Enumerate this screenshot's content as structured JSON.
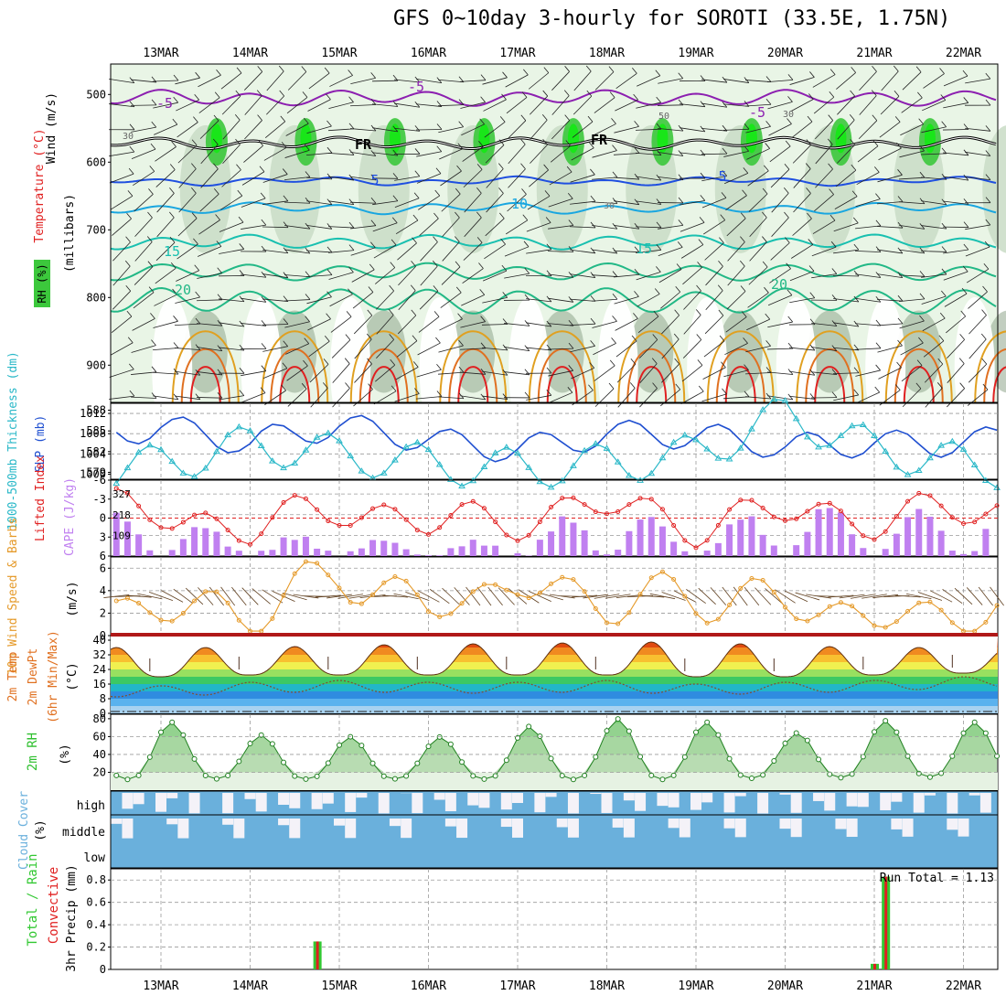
{
  "title": "GFS 0~10day 3-hourly for SOROTI (33.5E, 1.75N)",
  "colors": {
    "axis": "#000000",
    "grid": "#9a9a9a",
    "rh_light": "#e9f5e6",
    "rh_mid": "#c9dcc6",
    "rh_dark": "#8fa68c",
    "rh_green": "#3cc83c",
    "rh_bright": "#19e619",
    "temp_purple": "#8c1fb0",
    "temp_blue": "#1f4fe0",
    "temp_lightblue": "#19a6e0",
    "temp_teal": "#19c0b0",
    "temp_green": "#22b886",
    "temp_orange": "#e0a020",
    "temp_darkorange": "#e07020",
    "temp_red": "#e02020",
    "thickness": "#1f4fd0",
    "slp": "#2ab8c8",
    "lifted_index": "#e02020",
    "cape": "#c080f0",
    "wind_speed": "#e59a2a",
    "barb": "#604020",
    "rh2m": "#30c030",
    "cloud": "#6ab0dc",
    "cloud_clear": "#f4f2f8",
    "precip_total": "#32c832",
    "precip_conv": "#e02020"
  },
  "x_axis": {
    "ticks": [
      "13MAR",
      "14MAR",
      "15MAR",
      "16MAR",
      "17MAR",
      "18MAR",
      "19MAR",
      "20MAR",
      "21MAR",
      "22MAR"
    ]
  },
  "panels": {
    "upper_air": {
      "ylabel_wind": "Wind (m/s)",
      "ylabel_temp": "Temperature (°C)",
      "ylabel_rh": "RH (%)",
      "ylabel_units": "(millibars)",
      "y_ticks": [
        "500",
        "600",
        "700",
        "800",
        "900"
      ],
      "contour_labels": [
        "-5",
        "-5",
        "-5",
        "FR",
        "FR",
        "5",
        "5",
        "10",
        "15",
        "15",
        "20",
        "20",
        "50",
        "30",
        "30",
        "30"
      ]
    },
    "thickness": {
      "ylabel": "1000-500mb Thickness (dm)",
      "ylabel_right": "SLP (mb)",
      "y_ticks_left": [
        "588",
        "585",
        "582",
        "579"
      ],
      "y_ticks_right": [
        "1012",
        "1008",
        "1004",
        "1000"
      ]
    },
    "stability": {
      "ylabel_left": "Lifted Index",
      "ylabel_right": "CAPE (J/kg)",
      "y_ticks_left": [
        "-6",
        "-3",
        "0",
        "3",
        "6"
      ],
      "y_ticks_right": [
        "327",
        "218",
        "109"
      ]
    },
    "wind10m": {
      "ylabel": "10m Wind Speed & Barbs",
      "units": "(m/s)",
      "y_ticks": [
        "6",
        "4",
        "2",
        "0"
      ]
    },
    "temp2m": {
      "ylabel1": "2m Temp",
      "ylabel2": "2m DewPt",
      "ylabel3": "(6hr Min/Max)",
      "units": "(°C)",
      "y_ticks": [
        "40",
        "32",
        "24",
        "16",
        "8",
        "0"
      ]
    },
    "rh2m": {
      "ylabel": "2m RH",
      "units": "(%)",
      "y_ticks": [
        "80",
        "60",
        "40",
        "20"
      ]
    },
    "cloud": {
      "ylabel": "Cloud Cover",
      "units": "(%)",
      "levels": [
        "high",
        "middle",
        "low"
      ]
    },
    "precip": {
      "ylabel_left1": "Total / Rain",
      "ylabel_left2": "Convective",
      "ylabel": "3hr Precip (mm)",
      "run_total": "Run Total = 1.13",
      "y_ticks": [
        "0.8",
        "0.6",
        "0.4",
        "0.2",
        "0"
      ]
    }
  },
  "chart_data": [
    {
      "type": "line",
      "name": "thickness_slp",
      "x": [
        "13MAR",
        "14MAR",
        "15MAR",
        "16MAR",
        "17MAR",
        "18MAR",
        "19MAR",
        "20MAR",
        "21MAR",
        "22MAR"
      ],
      "series": [
        {
          "name": "1000-500mb Thickness (dm)",
          "values": [
            585.5,
            582,
            585,
            584.5,
            583.5,
            584.5,
            583,
            582,
            584,
            584.5
          ]
        },
        {
          "name": "SLP (mb)",
          "values": [
            1002,
            1004,
            1002,
            1002,
            1003,
            1004,
            1004,
            1010,
            1003,
            1002
          ]
        }
      ],
      "ylim_left": [
        578,
        589
      ],
      "ylim_right": [
        1000,
        1014
      ]
    },
    {
      "type": "bar",
      "name": "cape",
      "x": [
        "13MAR",
        "14MAR",
        "15MAR",
        "16MAR",
        "17MAR",
        "18MAR",
        "19MAR",
        "20MAR",
        "21MAR",
        "22MAR"
      ],
      "values": [
        220,
        90,
        110,
        60,
        90,
        300,
        110,
        300,
        230,
        260
      ],
      "ylim": [
        0,
        400
      ]
    },
    {
      "type": "line",
      "name": "lifted_index",
      "x": [
        "13MAR",
        "14MAR",
        "15MAR",
        "16MAR",
        "17MAR",
        "18MAR",
        "19MAR",
        "20MAR",
        "21MAR",
        "22MAR"
      ],
      "values": [
        -1,
        2,
        -2,
        1,
        0,
        -2,
        1,
        -1,
        0,
        -1
      ],
      "ylim": [
        -6,
        6
      ]
    },
    {
      "type": "line",
      "name": "wind10m",
      "x": [
        "13MAR",
        "14MAR",
        "15MAR",
        "16MAR",
        "17MAR",
        "18MAR",
        "19MAR",
        "20MAR",
        "21MAR",
        "22MAR"
      ],
      "values": [
        2.5,
        2,
        5.5,
        2.5,
        4.5,
        3,
        3.5,
        3,
        1.5,
        2
      ],
      "ylim": [
        0,
        7
      ]
    },
    {
      "type": "area",
      "name": "temp2m",
      "x": [
        "13MAR",
        "14MAR",
        "15MAR",
        "16MAR",
        "17MAR",
        "18MAR",
        "19MAR",
        "20MAR",
        "21MAR",
        "22MAR"
      ],
      "series": [
        {
          "name": "2m Temp max",
          "values": [
            36,
            36,
            37,
            38,
            38,
            39,
            39,
            37,
            36,
            36
          ]
        },
        {
          "name": "2m Temp min",
          "values": [
            20,
            21,
            21,
            21,
            21,
            21,
            20,
            20,
            21,
            22
          ]
        },
        {
          "name": "2m DewPt",
          "values": [
            12,
            14,
            15,
            14,
            14,
            15,
            13,
            14,
            15,
            17
          ]
        }
      ],
      "ylim": [
        0,
        42
      ]
    },
    {
      "type": "area",
      "name": "rh2m",
      "x": [
        "13MAR",
        "14MAR",
        "15MAR",
        "16MAR",
        "17MAR",
        "18MAR",
        "19MAR",
        "20MAR",
        "21MAR",
        "22MAR"
      ],
      "series": [
        {
          "name": "max",
          "values": [
            78,
            62,
            60,
            58,
            70,
            80,
            78,
            62,
            78,
            76
          ]
        },
        {
          "name": "min",
          "values": [
            12,
            13,
            12,
            13,
            12,
            12,
            12,
            14,
            14,
            15
          ]
        }
      ],
      "ylim": [
        0,
        85
      ]
    },
    {
      "type": "bar",
      "name": "precip3hr",
      "bars": [
        {
          "at": "14MAR 18Z",
          "total": 0.25,
          "convective": 0.25
        },
        {
          "at": "21MAR 00Z",
          "total": 0.05,
          "convective": 0.05
        },
        {
          "at": "21MAR 03Z",
          "total": 0.83,
          "convective": 0.83
        }
      ],
      "ylim": [
        0,
        0.9
      ]
    }
  ]
}
